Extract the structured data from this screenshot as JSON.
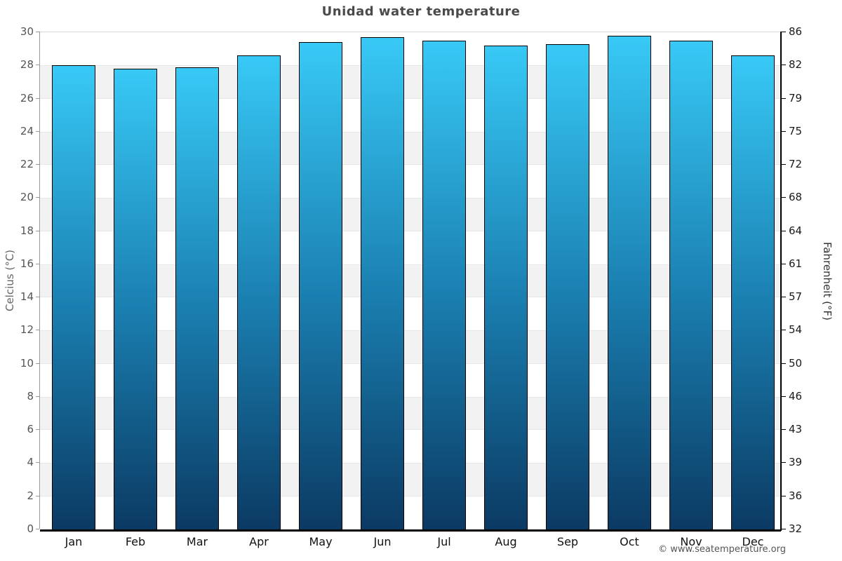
{
  "title": "Unidad water temperature",
  "footer": {
    "copyright": "© www.seatemperature.org"
  },
  "chart_data": {
    "type": "bar",
    "title": "Unidad water temperature",
    "categories": [
      "Jan",
      "Feb",
      "Mar",
      "Apr",
      "May",
      "Jun",
      "Jul",
      "Aug",
      "Sep",
      "Oct",
      "Nov",
      "Dec"
    ],
    "values": [
      28.0,
      27.8,
      27.9,
      28.6,
      29.4,
      29.7,
      29.5,
      29.2,
      29.3,
      29.8,
      29.5,
      28.6
    ],
    "unit": "°C",
    "ylabel_left": "Celcius (°C)",
    "ylabel_right": "Fahrenheit (°F)",
    "ylim_left": [
      0,
      30
    ],
    "yticks_left": [
      30,
      28,
      26,
      24,
      22,
      20,
      18,
      16,
      14,
      12,
      10,
      8,
      6,
      4,
      2,
      0
    ],
    "yticks_right_labels": [
      "86",
      "82",
      "79",
      "75",
      "72",
      "68",
      "64",
      "61",
      "57",
      "54",
      "50",
      "46",
      "43",
      "39",
      "36",
      "32"
    ],
    "grid": "alternating gray/white horizontal bands every 2°C",
    "gray_band_upper_edges_c": [
      28,
      24,
      20,
      16,
      12,
      8,
      4
    ],
    "legend": "none",
    "colors": {
      "bar_gradient_top": "#38c9f6",
      "bar_gradient_mid": "#1a7fb0",
      "bar_gradient_bottom": "#0b3a63",
      "bar_border": "#000000",
      "band_gray": "#f2f2f2",
      "title_text": "#4a4a4a",
      "axis_text": "#555555"
    }
  }
}
